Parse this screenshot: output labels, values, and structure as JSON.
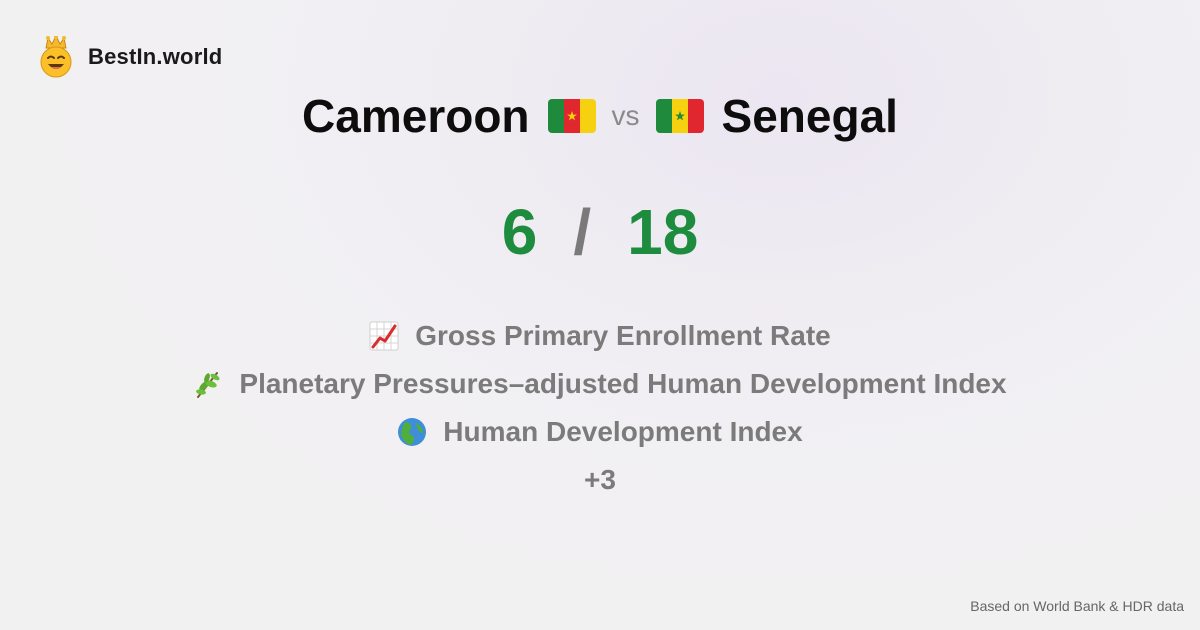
{
  "brand": {
    "name": "BestIn.world",
    "logo_icon": "crown-smiley-icon"
  },
  "comparison": {
    "left_country": "Cameroon",
    "right_country": "Senegal",
    "vs_label": "vs",
    "left_flag_icon": "cameroon-flag-icon",
    "right_flag_icon": "senegal-flag-icon"
  },
  "score": {
    "left": "6",
    "separator": "/",
    "right": "18",
    "color": "#1e8c3e"
  },
  "metrics": [
    {
      "icon": "chart-increasing-icon",
      "label": "Gross Primary Enrollment Rate"
    },
    {
      "icon": "herb-icon",
      "label": "Planetary Pressures–adjusted Human Development Index"
    },
    {
      "icon": "globe-icon",
      "label": "Human Development Index"
    }
  ],
  "more_label": "+3",
  "footer": {
    "source": "Based on World Bank & HDR data"
  }
}
